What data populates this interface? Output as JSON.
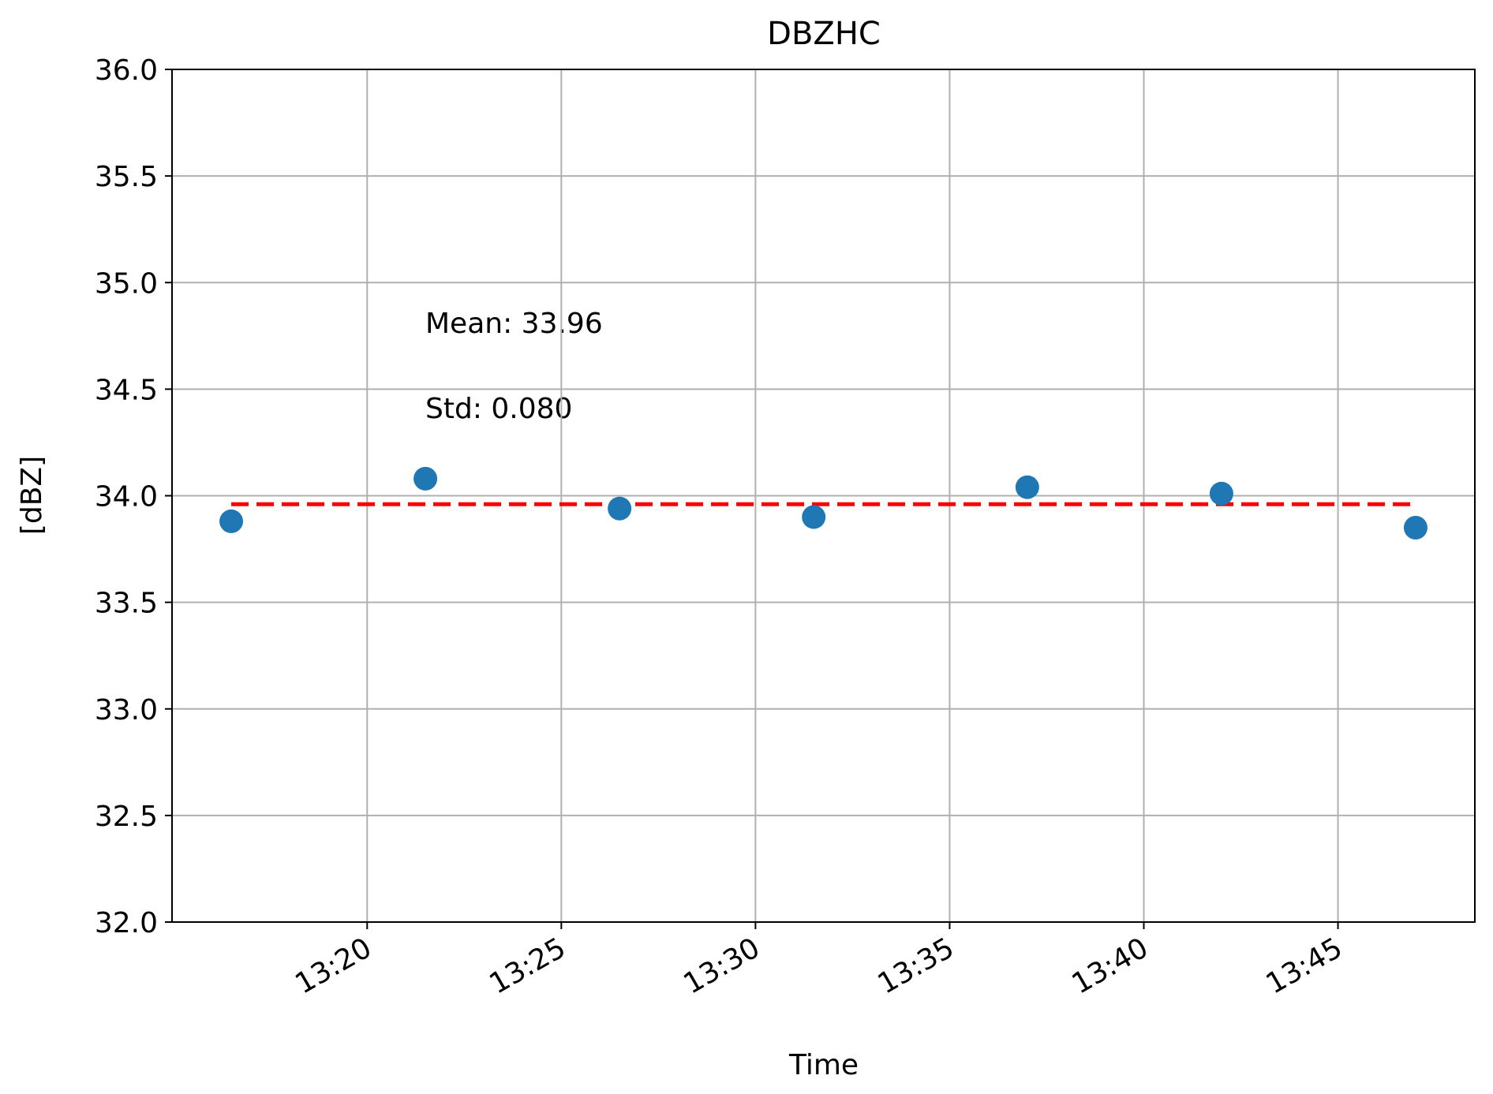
{
  "chart_data": {
    "type": "scatter",
    "title": "DBZHC",
    "xlabel": "Time",
    "ylabel": "[dBZ]",
    "series": [
      {
        "color": "#1f77b4",
        "x": [
          796.5,
          801.5,
          806.5,
          811.5,
          817,
          822,
          827
        ],
        "values": [
          33.88,
          34.08,
          33.94,
          33.9,
          34.04,
          34.01,
          33.85
        ]
      }
    ],
    "hlines": [
      {
        "value": 33.96,
        "color": "#ff0000",
        "style": "dashed"
      }
    ],
    "annotations": [
      "Mean: 33.96",
      "Std: 0.080"
    ],
    "xlim": [
      794.975,
      828.525
    ],
    "xticks": [
      {
        "value": 800,
        "label": "13:20"
      },
      {
        "value": 805,
        "label": "13:25"
      },
      {
        "value": 810,
        "label": "13:30"
      },
      {
        "value": 815,
        "label": "13:35"
      },
      {
        "value": 820,
        "label": "13:40"
      },
      {
        "value": 825,
        "label": "13:45"
      }
    ],
    "ylim": [
      32,
      36
    ],
    "yticks": [
      {
        "value": 32,
        "label": "32.0"
      },
      {
        "value": 32.5,
        "label": "32.5"
      },
      {
        "value": 33,
        "label": "33.0"
      },
      {
        "value": 33.5,
        "label": "33.5"
      },
      {
        "value": 34,
        "label": "34.0"
      },
      {
        "value": 34.5,
        "label": "34.5"
      },
      {
        "value": 35,
        "label": "35.0"
      },
      {
        "value": 35.5,
        "label": "35.5"
      },
      {
        "value": 36,
        "label": "36.0"
      }
    ],
    "grid": true
  }
}
